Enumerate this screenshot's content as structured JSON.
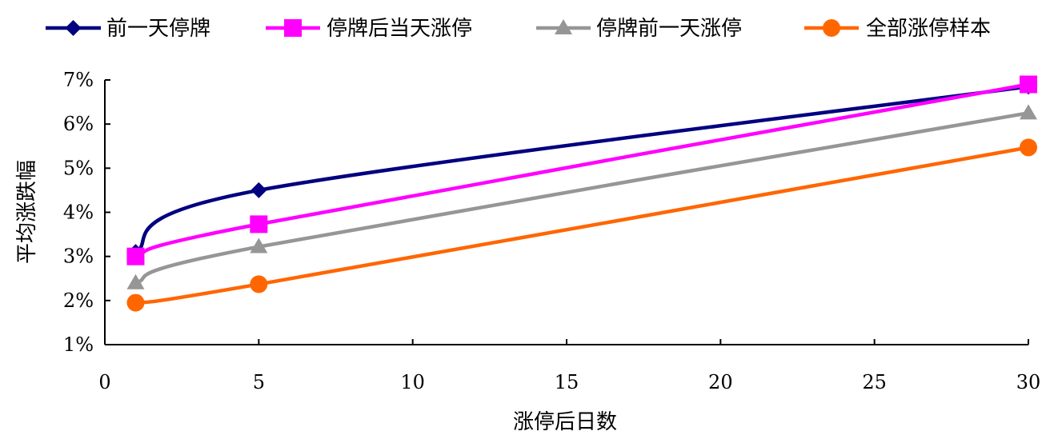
{
  "chart_data": {
    "type": "line",
    "title": "",
    "xlabel": "涨停后日数",
    "ylabel": "平均涨跌幅",
    "xlim": [
      0,
      30
    ],
    "ylim": [
      0.01,
      0.07
    ],
    "x_ticks": [
      "0",
      "5",
      "10",
      "15",
      "20",
      "25",
      "30"
    ],
    "y_ticks": [
      "1%",
      "2%",
      "3%",
      "4%",
      "5%",
      "6%",
      "7%"
    ],
    "grid": false,
    "legend_position": "top",
    "x": [
      1,
      5,
      30
    ],
    "series": [
      {
        "name": "前一天停牌",
        "values": [
          0.031,
          0.045,
          0.0685
        ],
        "color": "#000080",
        "marker": "diamond"
      },
      {
        "name": "停牌后当天涨停",
        "values": [
          0.03,
          0.0373,
          0.069
        ],
        "color": "#FF00FF",
        "marker": "square"
      },
      {
        "name": "停牌前一天涨停",
        "values": [
          0.024,
          0.0322,
          0.0625
        ],
        "color": "#969696",
        "marker": "triangle"
      },
      {
        "name": "全部涨停样本",
        "values": [
          0.0195,
          0.0237,
          0.0547
        ],
        "color": "#FF6600",
        "marker": "circle"
      }
    ]
  }
}
